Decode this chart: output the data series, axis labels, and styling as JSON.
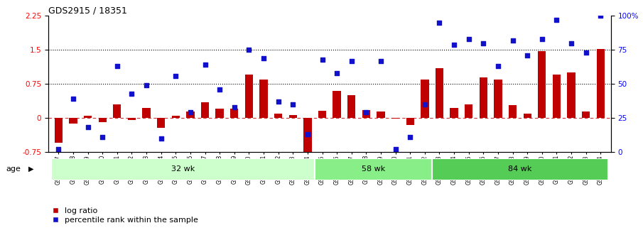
{
  "title": "GDS2915 / 18351",
  "samples": [
    "GSM97277",
    "GSM97278",
    "GSM97279",
    "GSM97280",
    "GSM97281",
    "GSM97282",
    "GSM97283",
    "GSM97284",
    "GSM97285",
    "GSM97286",
    "GSM97287",
    "GSM97288",
    "GSM97289",
    "GSM97290",
    "GSM97291",
    "GSM97292",
    "GSM97293",
    "GSM97294",
    "GSM97295",
    "GSM97296",
    "GSM97297",
    "GSM97298",
    "GSM97299",
    "GSM97300",
    "GSM97301",
    "GSM97302",
    "GSM97303",
    "GSM97304",
    "GSM97305",
    "GSM97306",
    "GSM97307",
    "GSM97308",
    "GSM97309",
    "GSM97310",
    "GSM97311",
    "GSM97312",
    "GSM97313",
    "GSM97314"
  ],
  "log_ratio": [
    -0.55,
    -0.12,
    0.05,
    -0.1,
    0.3,
    -0.05,
    0.22,
    -0.22,
    0.04,
    0.14,
    0.35,
    0.2,
    0.2,
    0.95,
    0.85,
    0.1,
    0.07,
    -0.88,
    0.16,
    0.6,
    0.5,
    0.18,
    0.14,
    -0.02,
    -0.15,
    0.85,
    1.1,
    0.22,
    0.3,
    0.9,
    0.85,
    0.28,
    0.1,
    1.47,
    0.95,
    1.0,
    0.14,
    1.52
  ],
  "percentile_pct": [
    2,
    39,
    18,
    11,
    63,
    43,
    49,
    10,
    56,
    29,
    64,
    46,
    33,
    75,
    69,
    37,
    35,
    13,
    68,
    58,
    67,
    29,
    67,
    2,
    11,
    35,
    95,
    79,
    83,
    80,
    63,
    82,
    71,
    83,
    97,
    80,
    73,
    100
  ],
  "groups": [
    {
      "label": "32 wk",
      "start": 0,
      "end": 18
    },
    {
      "label": "58 wk",
      "start": 18,
      "end": 26
    },
    {
      "label": "84 wk",
      "start": 26,
      "end": 38
    }
  ],
  "bar_color": "#c00000",
  "dot_color": "#1111cc",
  "left_ylim": [
    -0.75,
    2.25
  ],
  "right_ylim": [
    0,
    100
  ],
  "left_yticks": [
    -0.75,
    0,
    0.75,
    1.5,
    2.25
  ],
  "right_yticks": [
    0,
    25,
    50,
    75,
    100
  ],
  "right_yticklabels": [
    "0",
    "25",
    "50",
    "75",
    "100%"
  ],
  "hline_values": [
    0.75,
    1.5
  ],
  "background_color": "#ffffff",
  "group_colors": [
    "#ccffcc",
    "#88ee88",
    "#55cc55"
  ],
  "group_edge_color": "white"
}
